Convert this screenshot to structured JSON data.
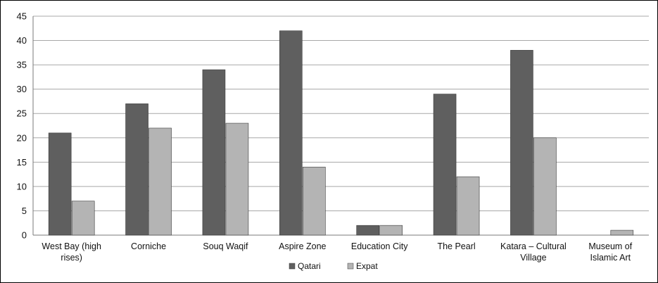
{
  "chart_data": {
    "type": "bar",
    "categories": [
      [
        "West Bay (high",
        "rises)"
      ],
      [
        "Corniche"
      ],
      [
        "Souq Waqif"
      ],
      [
        "Aspire Zone"
      ],
      [
        "Education City"
      ],
      [
        "The Pearl"
      ],
      [
        "Katara – Cultural",
        "Village"
      ],
      [
        "Museum of",
        "Islamic Art"
      ]
    ],
    "series": [
      {
        "name": "Qatari",
        "color": "#5f5f5f",
        "values": [
          21,
          27,
          34,
          42,
          2,
          29,
          38,
          0
        ]
      },
      {
        "name": "Expat",
        "color": "#b4b4b4",
        "values": [
          7,
          22,
          23,
          14,
          2,
          12,
          20,
          1
        ]
      }
    ],
    "y_ticks": [
      "0",
      "5",
      "10",
      "15",
      "20",
      "25",
      "30",
      "35",
      "40",
      "45"
    ],
    "ylim": [
      0,
      45
    ],
    "grid": true,
    "legend_position": "bottom"
  }
}
